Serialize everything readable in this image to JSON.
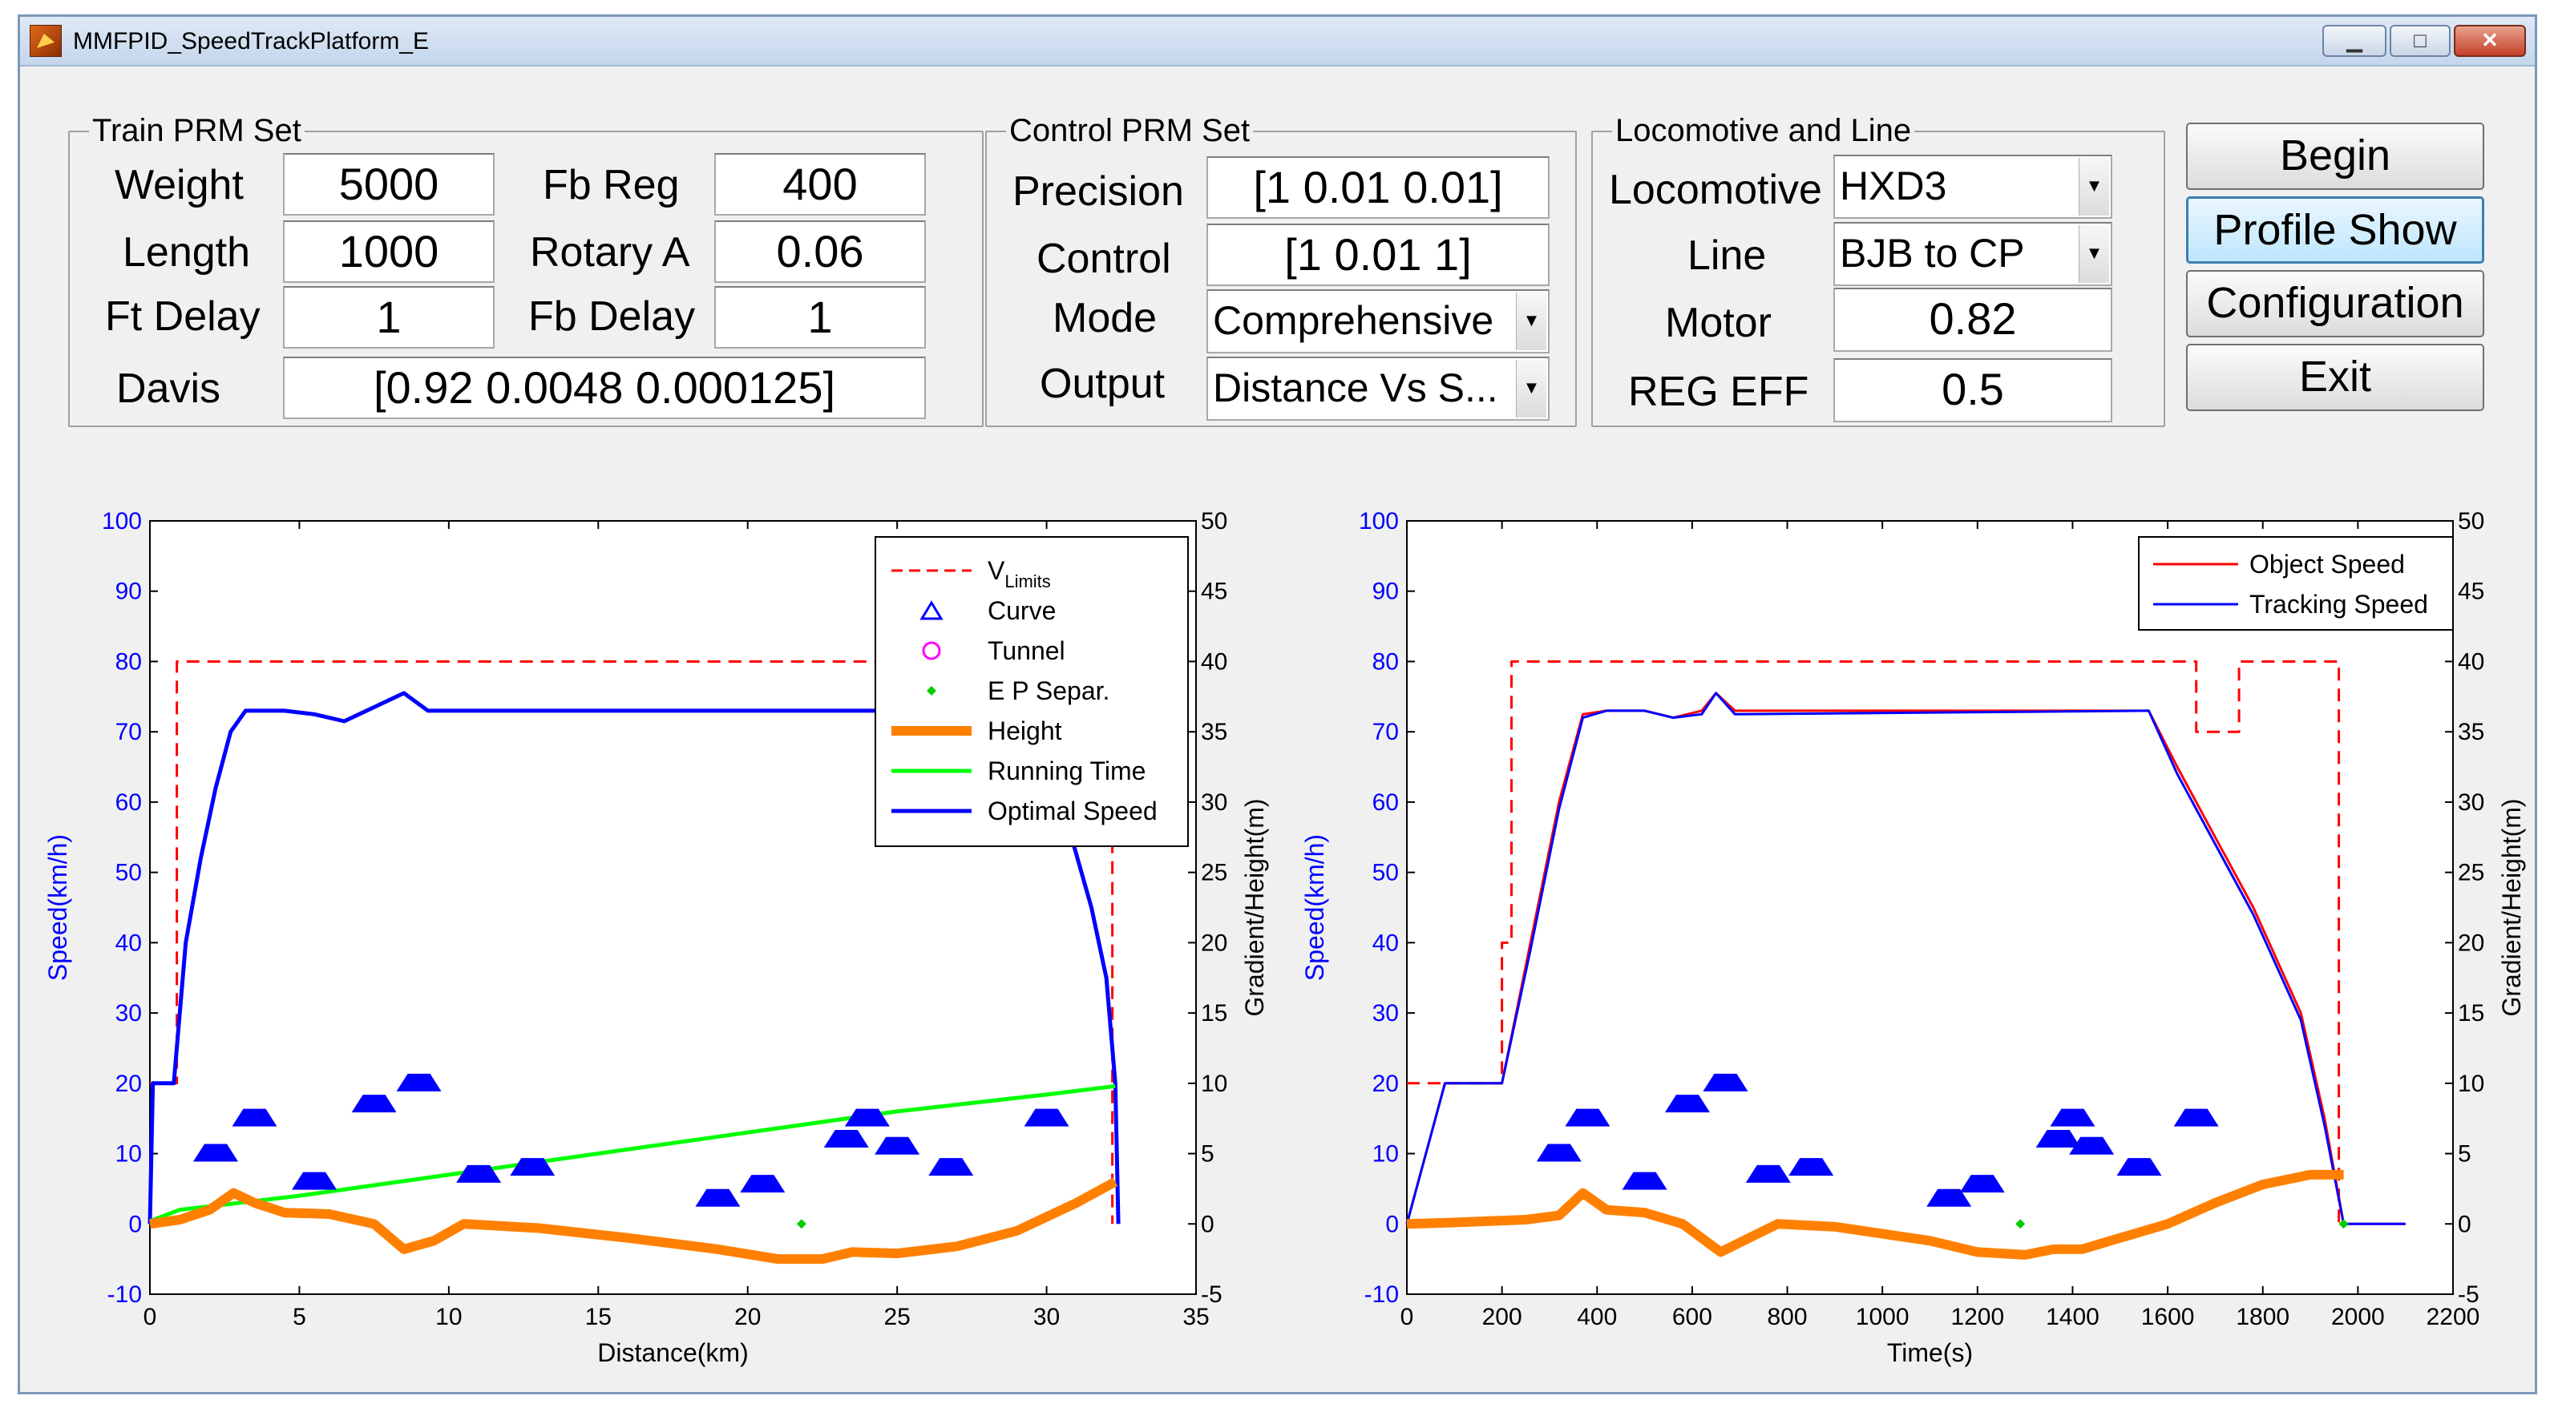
{
  "window": {
    "title": "MMFPID_SpeedTrackPlatform_E"
  },
  "train_prm": {
    "title": "Train PRM Set",
    "weight_label": "Weight",
    "weight_value": "5000",
    "fbreg_label": "Fb Reg",
    "fbreg_value": "400",
    "length_label": "Length",
    "length_value": "1000",
    "rotary_label": "Rotary A",
    "rotary_value": "0.06",
    "ftdelay_label": "Ft Delay",
    "ftdelay_value": "1",
    "fbdelay_label": "Fb Delay",
    "fbdelay_value": "1",
    "davis_label": "Davis",
    "davis_value": "[0.92 0.0048 0.000125]"
  },
  "control_prm": {
    "title": "Control PRM Set",
    "precision_label": "Precision",
    "precision_value": "[1 0.01 0.01]",
    "control_label": "Control",
    "control_value": "[1 0.01 1]",
    "mode_label": "Mode",
    "mode_value": "Comprehensive",
    "output_label": "Output",
    "output_value": "Distance Vs S..."
  },
  "loco_line": {
    "title": "Locomotive and Line",
    "locomotive_label": "Locomotive",
    "locomotive_value": "HXD3",
    "line_label": "Line",
    "line_value": "BJB to CP",
    "motor_label": "Motor",
    "motor_value": "0.82",
    "regeff_label": "REG EFF",
    "regeff_value": "0.5"
  },
  "buttons": {
    "begin": "Begin",
    "profile_show": "Profile Show",
    "configuration": "Configuration",
    "exit": "Exit"
  },
  "colors": {
    "speed_axis": "#0000ff",
    "vlimits": "#ff0000",
    "curve": "#0000ff",
    "tunnel": "#ff00ff",
    "ep_separ": "#00cc00",
    "height": "#ff8000",
    "running_time": "#00ff00",
    "optimal_speed": "#0000ff",
    "object_speed": "#ff0000",
    "tracking_speed": "#0000ff"
  },
  "chart_data": [
    {
      "type": "line",
      "xlabel": "Distance(km)",
      "ylabel": "Speed(km/h)",
      "y2label": "Gradient/Height(m)",
      "xlim": [
        0,
        35
      ],
      "ylim": [
        -10,
        100
      ],
      "y2lim": [
        -5,
        50
      ],
      "xticks": [
        "0",
        "5",
        "10",
        "15",
        "20",
        "25",
        "30",
        "35"
      ],
      "yticks": [
        "-10",
        "0",
        "10",
        "20",
        "30",
        "40",
        "50",
        "60",
        "70",
        "80",
        "90",
        "100"
      ],
      "y2ticks": [
        "-5",
        "0",
        "5",
        "10",
        "15",
        "20",
        "25",
        "30",
        "35",
        "40",
        "45",
        "50"
      ],
      "legend_labels": {
        "vlimits_main": "V",
        "vlimits_sub": "Limits",
        "curve": "Curve",
        "tunnel": "Tunnel",
        "ep": "E P Separ.",
        "height": "Height",
        "running": "Running Time",
        "optimal": "Optimal Speed"
      },
      "series": [
        {
          "name": "VLimits",
          "axis": "left",
          "points": [
            [
              0,
              20
            ],
            [
              0.9,
              20
            ],
            [
              0.9,
              80
            ],
            [
              32.2,
              80
            ],
            [
              32.2,
              0
            ]
          ]
        },
        {
          "name": "Optimal Speed",
          "axis": "left",
          "points": [
            [
              0,
              0
            ],
            [
              0.1,
              20
            ],
            [
              0.8,
              20
            ],
            [
              1.2,
              40
            ],
            [
              1.7,
              52
            ],
            [
              2.2,
              62
            ],
            [
              2.7,
              70
            ],
            [
              3.2,
              73
            ],
            [
              4.5,
              73
            ],
            [
              5.5,
              72.5
            ],
            [
              6.5,
              71.5
            ],
            [
              7.5,
              73.5
            ],
            [
              8.5,
              75.5
            ],
            [
              9.3,
              73
            ],
            [
              29.5,
              73
            ],
            [
              30.5,
              60
            ],
            [
              31.5,
              45
            ],
            [
              32,
              35
            ],
            [
              32.3,
              20
            ],
            [
              32.4,
              0
            ]
          ]
        },
        {
          "name": "Running Time",
          "axis": "right",
          "points": [
            [
              0,
              0.2
            ],
            [
              1,
              1
            ],
            [
              5,
              2
            ],
            [
              10,
              3.5
            ],
            [
              15,
              5
            ],
            [
              20,
              6.5
            ],
            [
              25,
              8
            ],
            [
              30,
              9.2
            ],
            [
              32.3,
              9.8
            ]
          ]
        },
        {
          "name": "Height",
          "axis": "right",
          "points": [
            [
              0,
              0
            ],
            [
              1,
              0.3
            ],
            [
              2,
              1
            ],
            [
              2.8,
              2.2
            ],
            [
              3.5,
              1.5
            ],
            [
              4.5,
              0.8
            ],
            [
              6,
              0.7
            ],
            [
              7.5,
              0
            ],
            [
              8.5,
              -1.8
            ],
            [
              9.5,
              -1.2
            ],
            [
              10.5,
              0
            ],
            [
              13,
              -0.3
            ],
            [
              16,
              -1
            ],
            [
              19,
              -1.8
            ],
            [
              21,
              -2.5
            ],
            [
              22.5,
              -2.5
            ],
            [
              23.5,
              -2
            ],
            [
              25,
              -2.1
            ],
            [
              27,
              -1.6
            ],
            [
              29,
              -0.5
            ],
            [
              31,
              1.5
            ],
            [
              32.3,
              3
            ]
          ]
        },
        {
          "name": "Curve",
          "axis": "right",
          "markers": [
            [
              2.2,
              5
            ],
            [
              3.5,
              7.5
            ],
            [
              5.5,
              3
            ],
            [
              7.5,
              8.5
            ],
            [
              9,
              10
            ],
            [
              11,
              3.5
            ],
            [
              12.8,
              4
            ],
            [
              19,
              1.8
            ],
            [
              20.5,
              2.8
            ],
            [
              23.3,
              6
            ],
            [
              24,
              7.5
            ],
            [
              25,
              5.5
            ],
            [
              26.8,
              4
            ],
            [
              30,
              7.5
            ]
          ]
        },
        {
          "name": "E P Separ.",
          "axis": "right",
          "markers": [
            [
              21.8,
              0
            ]
          ]
        }
      ]
    },
    {
      "type": "line",
      "xlabel": "Time(s)",
      "ylabel": "Speed(km/h)",
      "y2label": "Gradient/Height(m)",
      "xlim": [
        0,
        2200
      ],
      "ylim": [
        -10,
        100
      ],
      "y2lim": [
        -5,
        50
      ],
      "xticks": [
        "0",
        "200",
        "400",
        "600",
        "800",
        "1000",
        "1200",
        "1400",
        "1600",
        "1800",
        "2000",
        "2200"
      ],
      "yticks": [
        "-10",
        "0",
        "10",
        "20",
        "30",
        "40",
        "50",
        "60",
        "70",
        "80",
        "90",
        "100"
      ],
      "y2ticks": [
        "-5",
        "0",
        "5",
        "10",
        "15",
        "20",
        "25",
        "30",
        "35",
        "40",
        "45",
        "50"
      ],
      "legend_labels": {
        "object": "Object Speed",
        "tracking": "Tracking Speed"
      },
      "series": [
        {
          "name": "VLimits",
          "axis": "left",
          "points": [
            [
              0,
              20
            ],
            [
              200,
              20
            ],
            [
              200,
              40
            ],
            [
              220,
              40
            ],
            [
              220,
              80
            ],
            [
              1660,
              80
            ],
            [
              1660,
              70
            ],
            [
              1750,
              70
            ],
            [
              1750,
              80
            ],
            [
              1960,
              80
            ],
            [
              1960,
              0
            ]
          ]
        },
        {
          "name": "Object Speed",
          "axis": "left",
          "points": [
            [
              0,
              0
            ],
            [
              80,
              20
            ],
            [
              200,
              20
            ],
            [
              260,
              40
            ],
            [
              320,
              60
            ],
            [
              370,
              72.5
            ],
            [
              420,
              73
            ],
            [
              500,
              73
            ],
            [
              560,
              72
            ],
            [
              620,
              73
            ],
            [
              650,
              75.5
            ],
            [
              690,
              73
            ],
            [
              1560,
              73
            ],
            [
              1620,
              65
            ],
            [
              1700,
              55
            ],
            [
              1780,
              45
            ],
            [
              1880,
              30
            ],
            [
              1930,
              15
            ],
            [
              1970,
              0
            ],
            [
              2100,
              0
            ]
          ]
        },
        {
          "name": "Tracking Speed",
          "axis": "left",
          "points": [
            [
              0,
              0
            ],
            [
              80,
              20
            ],
            [
              200,
              20
            ],
            [
              260,
              39
            ],
            [
              320,
              59
            ],
            [
              370,
              72
            ],
            [
              420,
              73
            ],
            [
              500,
              73
            ],
            [
              560,
              72
            ],
            [
              620,
              72.5
            ],
            [
              650,
              75.5
            ],
            [
              690,
              72.5
            ],
            [
              1560,
              73
            ],
            [
              1620,
              64
            ],
            [
              1700,
              54
            ],
            [
              1780,
              44
            ],
            [
              1880,
              29
            ],
            [
              1930,
              14
            ],
            [
              1970,
              0
            ],
            [
              2100,
              0
            ]
          ]
        },
        {
          "name": "Height",
          "axis": "right",
          "points": [
            [
              0,
              0
            ],
            [
              100,
              0.1
            ],
            [
              250,
              0.3
            ],
            [
              320,
              0.6
            ],
            [
              370,
              2.2
            ],
            [
              420,
              1
            ],
            [
              500,
              0.8
            ],
            [
              580,
              0
            ],
            [
              660,
              -2
            ],
            [
              720,
              -1
            ],
            [
              780,
              0
            ],
            [
              900,
              -0.2
            ],
            [
              1100,
              -1.2
            ],
            [
              1200,
              -2
            ],
            [
              1300,
              -2.2
            ],
            [
              1360,
              -1.8
            ],
            [
              1420,
              -1.8
            ],
            [
              1500,
              -1
            ],
            [
              1600,
              0
            ],
            [
              1700,
              1.5
            ],
            [
              1800,
              2.8
            ],
            [
              1900,
              3.5
            ],
            [
              1970,
              3.5
            ]
          ]
        },
        {
          "name": "Curve",
          "axis": "right",
          "markers": [
            [
              320,
              5
            ],
            [
              380,
              7.5
            ],
            [
              500,
              3
            ],
            [
              590,
              8.5
            ],
            [
              670,
              10
            ],
            [
              760,
              3.5
            ],
            [
              850,
              4
            ],
            [
              1140,
              1.8
            ],
            [
              1210,
              2.8
            ],
            [
              1370,
              6
            ],
            [
              1400,
              7.5
            ],
            [
              1440,
              5.5
            ],
            [
              1540,
              4
            ],
            [
              1660,
              7.5
            ]
          ]
        },
        {
          "name": "E P Separ.",
          "axis": "right",
          "markers": [
            [
              1290,
              0
            ],
            [
              1970,
              0
            ]
          ]
        }
      ]
    }
  ]
}
